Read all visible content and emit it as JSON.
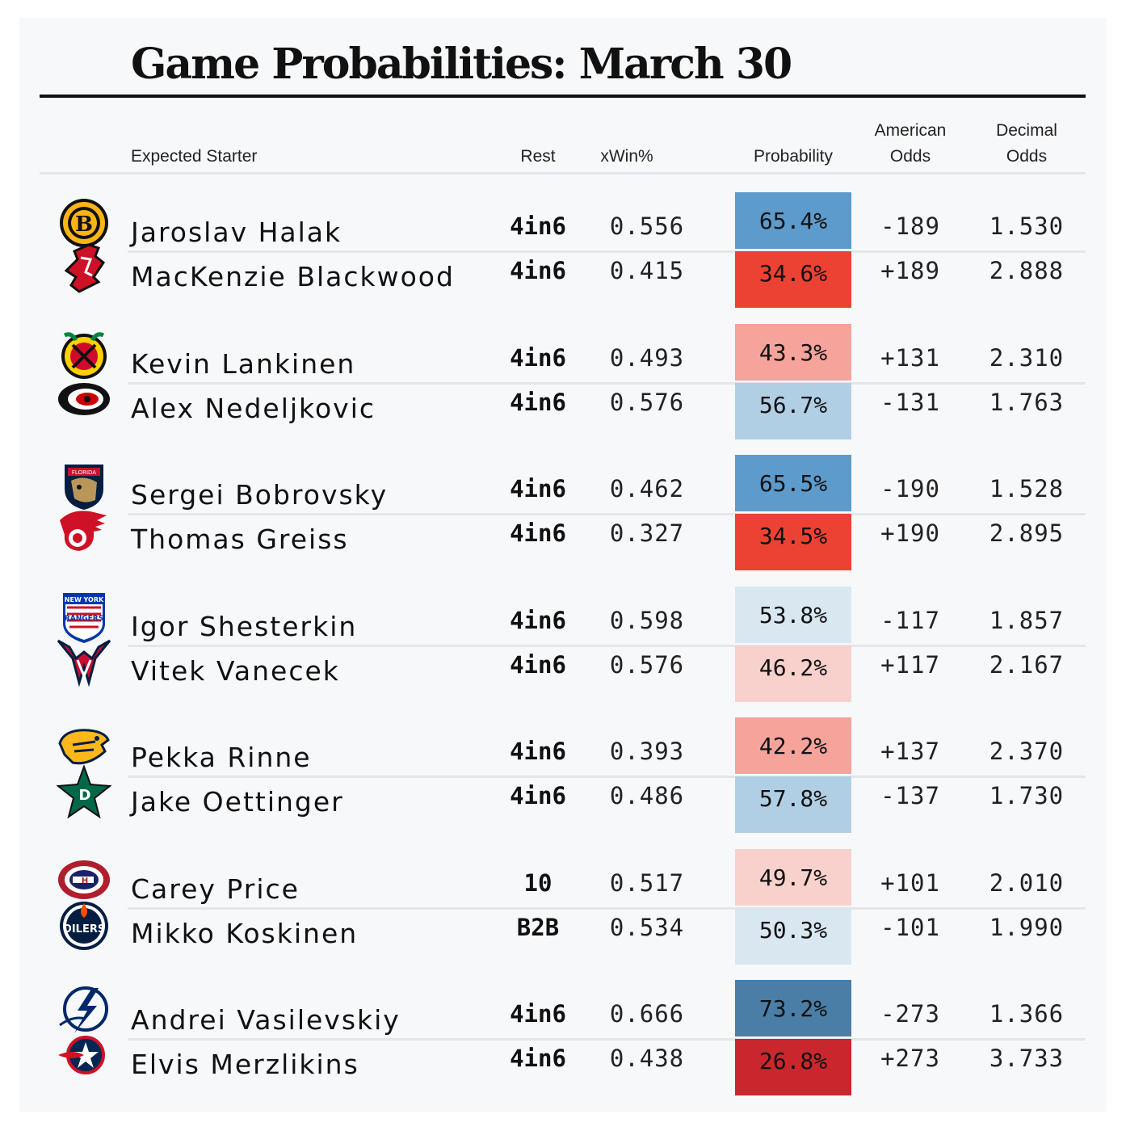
{
  "title": "Game Probabilities: March 30",
  "headers": {
    "starter": "Expected Starter",
    "rest": "Rest",
    "xwin": "xWin%",
    "probability": "Probability",
    "american_1": "American",
    "american_2": "Odds",
    "decimal_1": "Decimal",
    "decimal_2": "Odds"
  },
  "rows": [
    {
      "team": "bruins-logo",
      "starter": "Jaroslav Halak",
      "rest": "4in6",
      "xwin": "0.556",
      "probability": "65.4%",
      "prob_value": 65.4,
      "prob_color": "#5d9bcc",
      "american": "-189",
      "decimal": "1.530"
    },
    {
      "team": "devils-logo",
      "starter": "MacKenzie Blackwood",
      "rest": "4in6",
      "xwin": "0.415",
      "probability": "34.6%",
      "prob_value": 34.6,
      "prob_color": "#ec4233",
      "american": "+189",
      "decimal": "2.888"
    },
    {
      "team": "blackhawks-logo",
      "starter": "Kevin Lankinen",
      "rest": "4in6",
      "xwin": "0.493",
      "probability": "43.3%",
      "prob_value": 43.3,
      "prob_color": "#f5a39b",
      "american": "+131",
      "decimal": "2.310"
    },
    {
      "team": "hurricanes-logo",
      "starter": "Alex Nedeljkovic",
      "rest": "4in6",
      "xwin": "0.576",
      "probability": "56.7%",
      "prob_value": 56.7,
      "prob_color": "#b0cfe4",
      "american": "-131",
      "decimal": "1.763"
    },
    {
      "team": "panthers-logo",
      "starter": "Sergei Bobrovsky",
      "rest": "4in6",
      "xwin": "0.462",
      "probability": "65.5%",
      "prob_value": 65.5,
      "prob_color": "#5d9bcc",
      "american": "-190",
      "decimal": "1.528"
    },
    {
      "team": "red-wings-logo",
      "starter": "Thomas Greiss",
      "rest": "4in6",
      "xwin": "0.327",
      "probability": "34.5%",
      "prob_value": 34.5,
      "prob_color": "#ec4233",
      "american": "+190",
      "decimal": "2.895"
    },
    {
      "team": "rangers-logo",
      "starter": "Igor Shesterkin",
      "rest": "4in6",
      "xwin": "0.598",
      "probability": "53.8%",
      "prob_value": 53.8,
      "prob_color": "#d9e7f1",
      "american": "-117",
      "decimal": "1.857"
    },
    {
      "team": "capitals-logo",
      "starter": "Vitek Vanecek",
      "rest": "4in6",
      "xwin": "0.576",
      "probability": "46.2%",
      "prob_value": 46.2,
      "prob_color": "#f8d1cd",
      "american": "+117",
      "decimal": "2.167"
    },
    {
      "team": "predators-logo",
      "starter": "Pekka Rinne",
      "rest": "4in6",
      "xwin": "0.393",
      "probability": "42.2%",
      "prob_value": 42.2,
      "prob_color": "#f5a39b",
      "american": "+137",
      "decimal": "2.370"
    },
    {
      "team": "stars-logo",
      "starter": "Jake Oettinger",
      "rest": "4in6",
      "xwin": "0.486",
      "probability": "57.8%",
      "prob_value": 57.8,
      "prob_color": "#b0cfe4",
      "american": "-137",
      "decimal": "1.730"
    },
    {
      "team": "canadiens-logo",
      "starter": "Carey Price",
      "rest": "10",
      "xwin": "0.517",
      "probability": "49.7%",
      "prob_value": 49.7,
      "prob_color": "#f8d1cd",
      "american": "+101",
      "decimal": "2.010"
    },
    {
      "team": "oilers-logo",
      "starter": "Mikko Koskinen",
      "rest": "B2B",
      "xwin": "0.534",
      "probability": "50.3%",
      "prob_value": 50.3,
      "prob_color": "#d9e7f1",
      "american": "-101",
      "decimal": "1.990"
    },
    {
      "team": "lightning-logo",
      "starter": "Andrei Vasilevskiy",
      "rest": "4in6",
      "xwin": "0.666",
      "probability": "73.2%",
      "prob_value": 73.2,
      "prob_color": "#4a7ea6",
      "american": "-273",
      "decimal": "1.366"
    },
    {
      "team": "blue-jackets-logo",
      "starter": "Elvis Merzlikins",
      "rest": "4in6",
      "xwin": "0.438",
      "probability": "26.8%",
      "prob_value": 26.8,
      "prob_color": "#c9272d",
      "american": "+273",
      "decimal": "3.733"
    }
  ]
}
